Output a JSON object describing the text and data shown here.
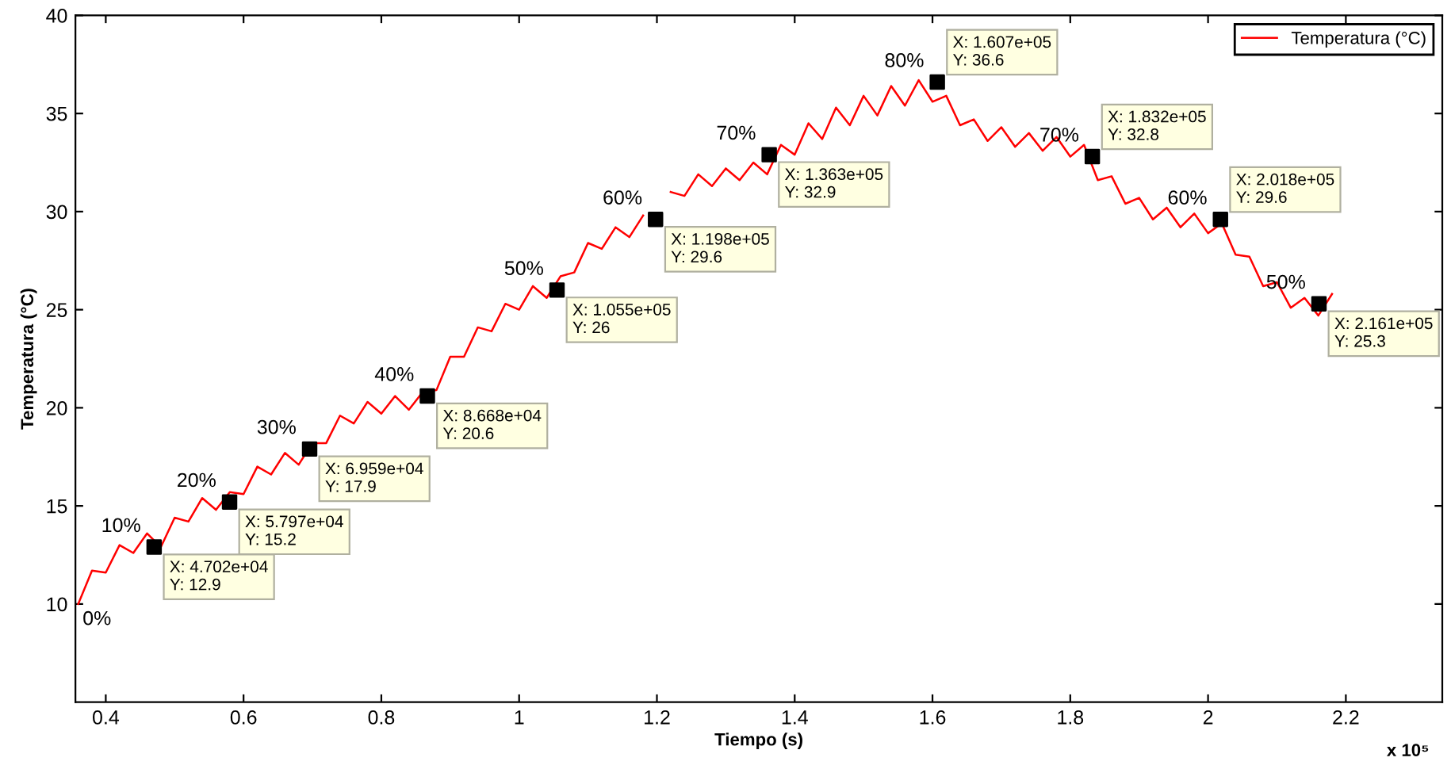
{
  "chart_data": {
    "type": "line",
    "xlabel": "Tiempo (s)",
    "ylabel": "Temperatura (°C)",
    "xlim": [
      0.356,
      2.34
    ],
    "ylim": [
      5,
      40
    ],
    "xticks": [
      0.4,
      0.6,
      0.8,
      1,
      1.2,
      1.4,
      1.6,
      1.8,
      2,
      2.2
    ],
    "yticks": [
      10,
      15,
      20,
      25,
      30,
      35,
      40
    ],
    "grid": false,
    "legend": "top right",
    "series": [
      {
        "name": "Temperatura (°C)",
        "color": "#ff0000",
        "marker": "none",
        "line_style": "solid",
        "x": [
          0.36,
          0.38,
          0.4,
          0.42,
          0.44,
          0.46,
          0.48,
          0.5,
          0.52,
          0.54,
          0.56,
          0.58,
          0.6,
          0.62,
          0.64,
          0.66,
          0.68,
          0.7,
          0.72,
          0.74,
          0.76,
          0.78,
          0.8,
          0.82,
          0.84,
          0.86,
          0.88,
          0.9,
          0.92,
          0.94,
          0.96,
          0.98,
          1.0,
          1.02,
          1.04,
          1.06,
          1.08,
          1.1,
          1.12,
          1.14,
          1.16,
          1.18,
          1.2,
          1.22,
          1.24,
          1.26,
          1.28,
          1.3,
          1.32,
          1.34,
          1.36,
          1.38,
          1.4,
          1.42,
          1.44,
          1.46,
          1.48,
          1.5,
          1.52,
          1.54,
          1.56,
          1.58,
          1.6,
          1.62,
          1.64,
          1.66,
          1.68,
          1.7,
          1.72,
          1.74,
          1.76,
          1.78,
          1.8,
          1.82,
          1.84,
          1.86,
          1.88,
          1.9,
          1.92,
          1.94,
          1.96,
          1.98,
          2.0,
          2.02,
          2.04,
          2.06,
          2.08,
          2.1,
          2.12,
          2.14,
          2.16,
          2.18
        ],
        "values": [
          10.0,
          11.7,
          11.6,
          13.0,
          12.6,
          13.6,
          12.9,
          14.4,
          14.2,
          15.4,
          14.8,
          15.7,
          15.6,
          17.0,
          16.6,
          17.7,
          17.1,
          18.2,
          18.2,
          19.6,
          19.2,
          20.3,
          19.7,
          20.6,
          19.9,
          20.8,
          20.9,
          22.6,
          22.6,
          24.1,
          23.9,
          25.3,
          25.0,
          26.2,
          25.6,
          26.7,
          26.9,
          28.4,
          28.1,
          29.2,
          28.7,
          29.8,
          null,
          31.0,
          30.8,
          31.9,
          31.3,
          32.2,
          31.6,
          32.5,
          31.9,
          33.4,
          32.9,
          34.5,
          33.7,
          35.3,
          34.4,
          35.9,
          34.9,
          36.4,
          35.4,
          36.7,
          35.6,
          35.9,
          34.4,
          34.7,
          33.6,
          34.3,
          33.3,
          34.0,
          33.1,
          33.8,
          32.8,
          33.4,
          31.6,
          31.8,
          30.4,
          30.7,
          29.6,
          30.2,
          29.2,
          29.9,
          28.9,
          29.4,
          27.8,
          27.7,
          26.2,
          26.4,
          25.1,
          25.6,
          24.7,
          25.8
        ]
      },
      {
        "type": "scatter",
        "color": "#000000",
        "marker": "square",
        "x": [
          0.4702,
          0.5797,
          0.6959,
          0.8668,
          1.055,
          1.198,
          1.363,
          1.607,
          1.832,
          2.018,
          2.161
        ],
        "values": [
          12.9,
          15.2,
          17.9,
          20.6,
          26,
          29.6,
          32.9,
          36.6,
          32.8,
          29.6,
          25.3
        ],
        "value_labels": [
          "X: 4.702e+04\nY: 12.9",
          "X: 5.797e+04\nY: 15.2",
          "X: 6.959e+04\nY: 17.9",
          "X: 8.668e+04\nY: 20.6",
          "X: 1.055e+05\nY: 26",
          "X: 1.198e+05\nY: 29.6",
          "X: 1.363e+05\nY: 32.9",
          "X: 1.607e+05\nY: 36.6",
          "X: 1.832e+05\nY: 32.8",
          "X: 2.018e+05\nY: 29.6",
          "X: 2.161e+05\nY: 25.3"
        ]
      }
    ],
    "annotations": [
      {
        "text": "0%",
        "x": 0.36,
        "y": 10
      },
      {
        "text": "10%",
        "x": 0.4702,
        "y": 12.9
      },
      {
        "text": "20%",
        "x": 0.5797,
        "y": 15.2
      },
      {
        "text": "30%",
        "x": 0.6959,
        "y": 17.9
      },
      {
        "text": "40%",
        "x": 0.8668,
        "y": 20.6
      },
      {
        "text": "50%",
        "x": 1.055,
        "y": 26
      },
      {
        "text": "60%",
        "x": 1.198,
        "y": 29.6
      },
      {
        "text": "70%",
        "x": 1.363,
        "y": 32.9
      },
      {
        "text": "80%",
        "x": 1.607,
        "y": 36.6
      },
      {
        "text": "70%",
        "x": 1.832,
        "y": 32.8
      },
      {
        "text": "60%",
        "x": 2.018,
        "y": 29.6
      },
      {
        "text": "50%",
        "x": 2.161,
        "y": 25.3
      },
      "x 10⁵"
    ]
  }
}
